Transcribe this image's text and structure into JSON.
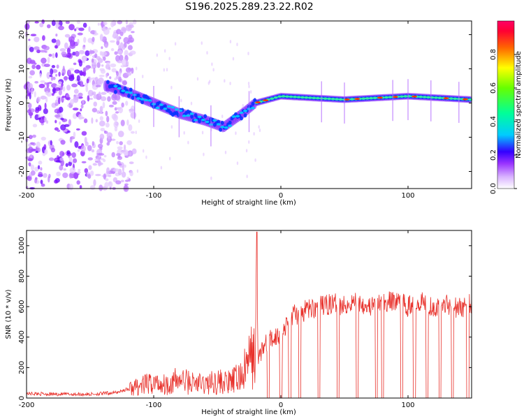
{
  "title": "S196.2025.289.23.22.R02",
  "chart_data": [
    {
      "type": "heatmap",
      "xlabel": "Height of straight line (km)",
      "ylabel": "Frequency (Hz)",
      "xlim": [
        -200,
        150
      ],
      "ylim": [
        -25,
        24
      ],
      "x_ticks": [
        -200,
        -100,
        0,
        100
      ],
      "y_ticks": [
        -20,
        -10,
        0,
        10,
        20
      ],
      "colorbar": {
        "label": "Normalized spectral amplitude",
        "range": [
          0,
          1
        ],
        "ticks": [
          "0.0",
          "0.2",
          "0.4",
          "0.6",
          "0.8"
        ],
        "tick_values": [
          0.0,
          0.2,
          0.4,
          0.6,
          0.8
        ],
        "colors": [
          "#ffffff",
          "#d9b3ff",
          "#9933ff",
          "#5a00ff",
          "#0000ff",
          "#00c8ff",
          "#00ff80",
          "#7fff00",
          "#ffff00",
          "#ff8000",
          "#ff0000",
          "#ff0066"
        ]
      },
      "ridge": [
        {
          "x": -135,
          "f": 5
        },
        {
          "x": -120,
          "f": 3
        },
        {
          "x": -100,
          "f": 0
        },
        {
          "x": -80,
          "f": -3
        },
        {
          "x": -60,
          "f": -5
        },
        {
          "x": -45,
          "f": -7
        },
        {
          "x": -30,
          "f": -3
        },
        {
          "x": -20,
          "f": 0
        },
        {
          "x": 0,
          "f": 2
        },
        {
          "x": 50,
          "f": 1
        },
        {
          "x": 100,
          "f": 2
        },
        {
          "x": 150,
          "f": 1
        }
      ]
    },
    {
      "type": "line",
      "xlabel": "Height of straight line (km)",
      "ylabel": "SNR (10 * v/v)",
      "xlim": [
        -200,
        150
      ],
      "ylim": [
        0,
        1100
      ],
      "x_ticks": [
        -200,
        -100,
        0,
        100
      ],
      "y_ticks": [
        0,
        200,
        400,
        600,
        800,
        1000
      ],
      "series": [
        {
          "name": "SNR",
          "color": "#e8302a",
          "x": [
            -200,
            -175,
            -150,
            -130,
            -120,
            -110,
            -100,
            -90,
            -80,
            -70,
            -60,
            -50,
            -40,
            -30,
            -25,
            -20,
            -19,
            -18,
            -15,
            -10,
            -5,
            0,
            5,
            10,
            15,
            20,
            30,
            40,
            50,
            60,
            70,
            80,
            90,
            100,
            110,
            120,
            130,
            140,
            150
          ],
          "y": [
            30,
            25,
            25,
            35,
            60,
            80,
            100,
            90,
            120,
            100,
            90,
            110,
            100,
            150,
            250,
            300,
            1090,
            250,
            320,
            370,
            400,
            420,
            480,
            560,
            540,
            580,
            600,
            620,
            610,
            640,
            600,
            620,
            640,
            600,
            640,
            600,
            620,
            590,
            620
          ]
        }
      ],
      "dropouts_km": [
        -10,
        0,
        7,
        15,
        30,
        45,
        60,
        75,
        80,
        95,
        105,
        115,
        125,
        135,
        147
      ]
    }
  ]
}
